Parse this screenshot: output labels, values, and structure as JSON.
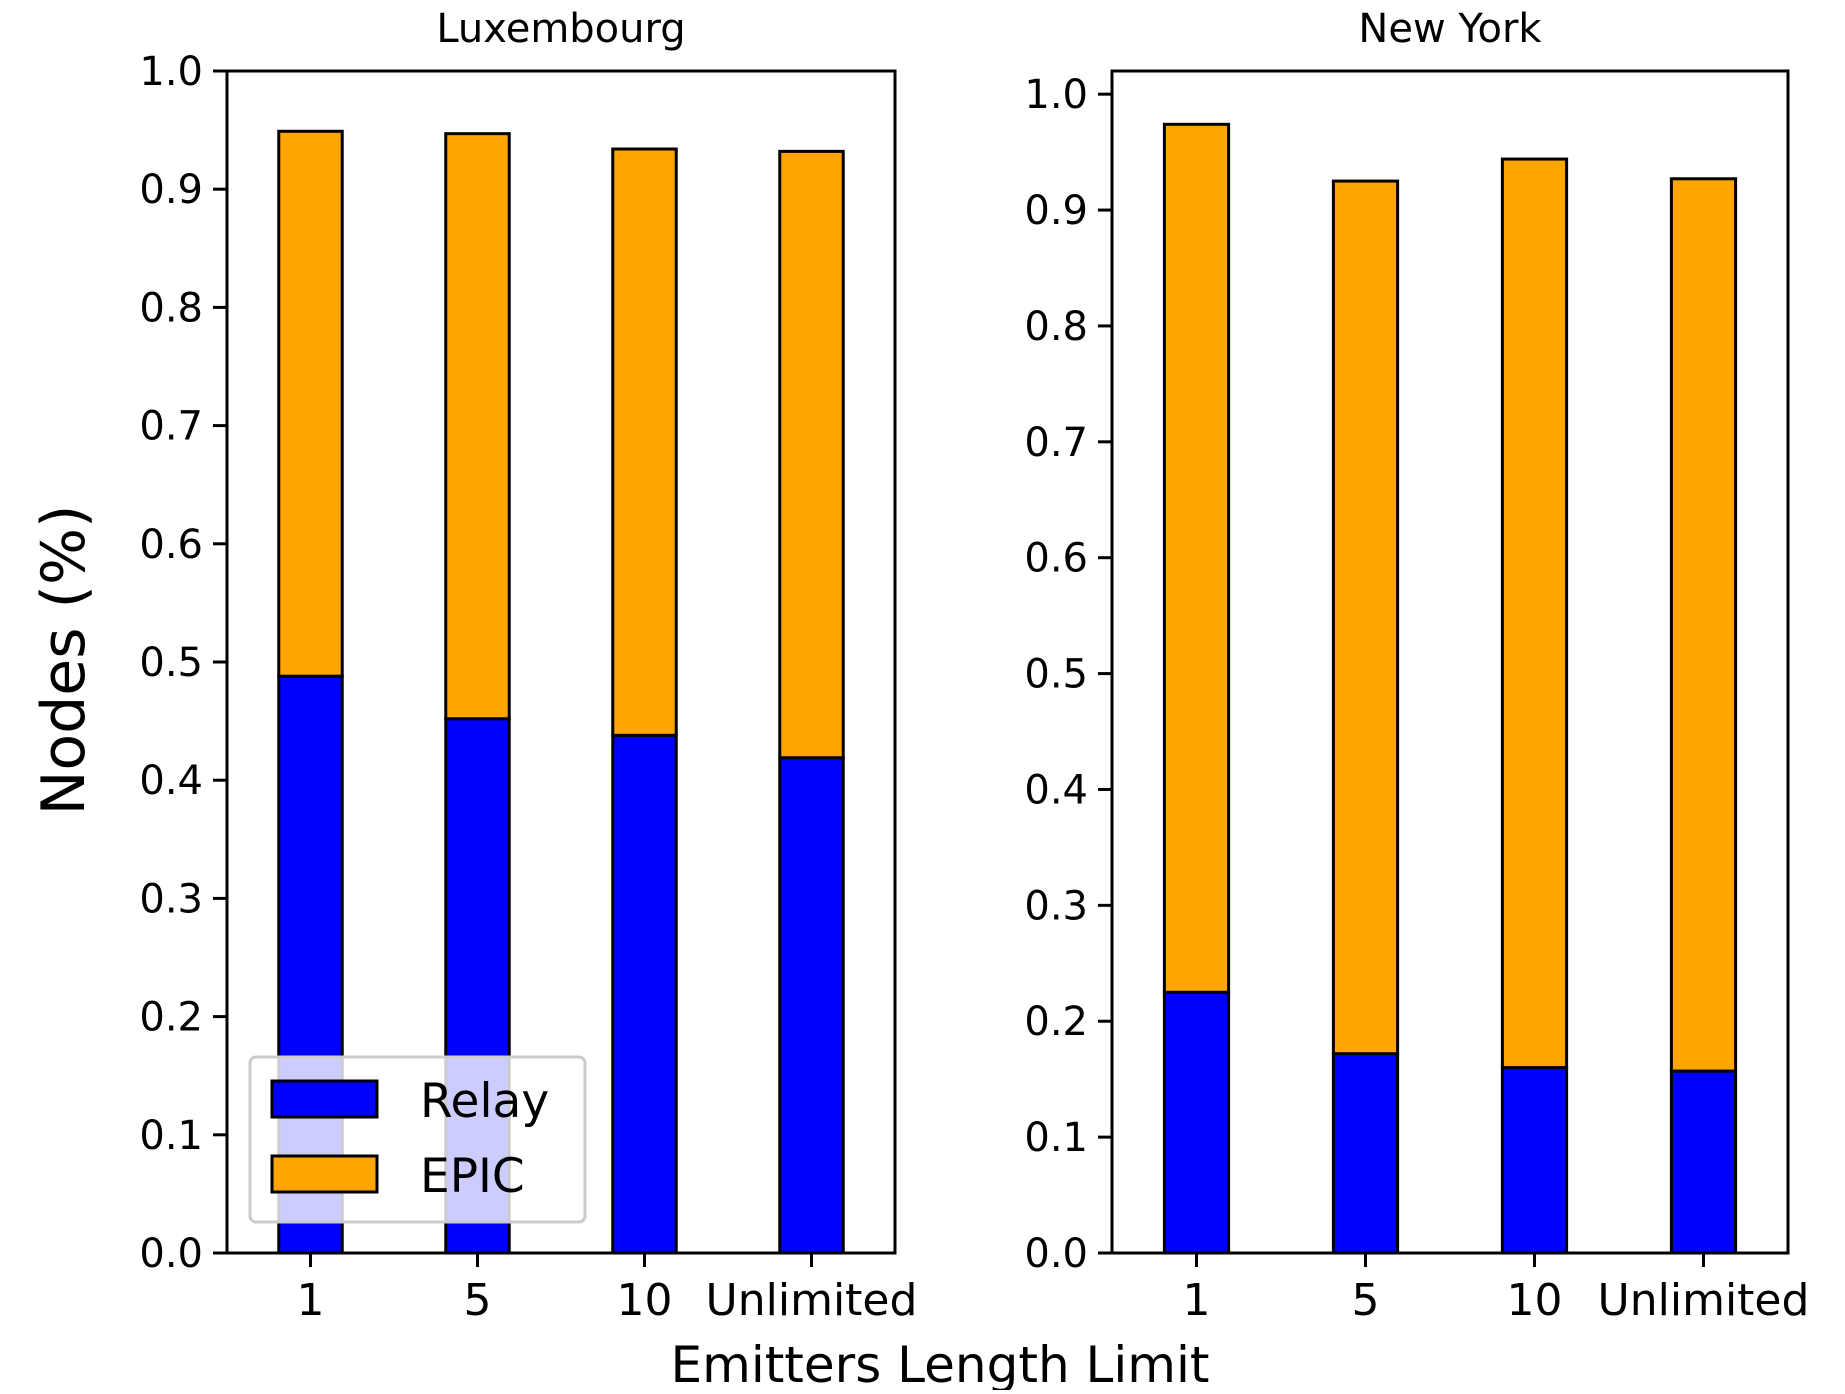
{
  "figure": {
    "xlabel": "Emitters Length Limit",
    "ylabel": "Nodes (%)"
  },
  "legend": {
    "placement": "lower-left",
    "entries": [
      {
        "label": "Relay",
        "color": "#0000ff"
      },
      {
        "label": "EPIC",
        "color": "#ffa500"
      }
    ]
  },
  "chart_data": [
    {
      "type": "bar",
      "stacked": true,
      "title": "Luxembourg",
      "categories": [
        "1",
        "5",
        "10",
        "Unlimited"
      ],
      "ylim": [
        0,
        1.0
      ],
      "yticks": [
        "0.0",
        "0.1",
        "0.2",
        "0.3",
        "0.4",
        "0.5",
        "0.6",
        "0.7",
        "0.8",
        "0.9",
        "1.0"
      ],
      "grid": false,
      "series": [
        {
          "name": "Relay",
          "color": "#0000ff",
          "values": [
            0.488,
            0.452,
            0.438,
            0.419
          ]
        },
        {
          "name": "EPIC",
          "color": "#ffa500",
          "values": [
            0.461,
            0.495,
            0.496,
            0.513
          ]
        }
      ]
    },
    {
      "type": "bar",
      "stacked": true,
      "title": "New York",
      "categories": [
        "1",
        "5",
        "10",
        "Unlimited"
      ],
      "ylim": [
        0,
        1.02
      ],
      "yticks": [
        "0.0",
        "0.1",
        "0.2",
        "0.3",
        "0.4",
        "0.5",
        "0.6",
        "0.7",
        "0.8",
        "0.9",
        "1.0"
      ],
      "grid": false,
      "series": [
        {
          "name": "Relay",
          "color": "#0000ff",
          "values": [
            0.225,
            0.172,
            0.16,
            0.157
          ]
        },
        {
          "name": "EPIC",
          "color": "#ffa500",
          "values": [
            0.749,
            0.753,
            0.784,
            0.77
          ]
        }
      ]
    }
  ]
}
